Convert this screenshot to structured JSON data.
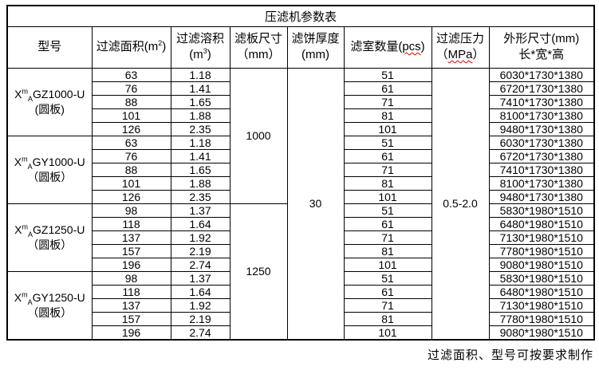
{
  "title": "压滤机参数表",
  "footer": "过滤面积、型号可按要求制作",
  "colors": {
    "border": "#000000",
    "text": "#000000",
    "spellcheck_underline": "#dd0000"
  },
  "headers": {
    "model": "型号",
    "area_prefix": "过滤面积(m",
    "area_sup": "2",
    "area_suffix": ")",
    "volume_line1": "过滤溶积",
    "volume_prefix": "(m",
    "volume_sup": "3",
    "volume_suffix": ")",
    "plate_line1": "滤板尺寸",
    "plate_line2": "（mm）",
    "cake_line1": "滤饼厚度",
    "cake_line2": "(mm)",
    "chambers_prefix": "滤室数量(",
    "chambers_unit": "pcs",
    "chambers_suffix": ")",
    "pressure_line1": "过滤压力",
    "pressure_open": "（",
    "pressure_unit": "MPa",
    "pressure_close": "）",
    "dims_line1": "外形尺寸(mm)",
    "dims_line2": "长*宽*高"
  },
  "plate_sizes": [
    {
      "value": "1000",
      "rows": 10
    },
    {
      "value": "1250",
      "rows": 10
    }
  ],
  "cake_thickness": "30",
  "pressure": "0.5-2.0",
  "groups": [
    {
      "model": {
        "prefix": "X",
        "sup": "m",
        "sub": "A",
        "name": "GZ1000-U",
        "variant": "(圆板)"
      },
      "rows": [
        {
          "area": "63",
          "volume": "1.18",
          "chambers": "51",
          "dims": "6030*1730*1380"
        },
        {
          "area": "76",
          "volume": "1.41",
          "chambers": "61",
          "dims": "6720*1730*1380"
        },
        {
          "area": "88",
          "volume": "1.65",
          "chambers": "71",
          "dims": "7410*1730*1380"
        },
        {
          "area": "101",
          "volume": "1.88",
          "chambers": "81",
          "dims": "8100*1730*1380"
        },
        {
          "area": "126",
          "volume": "2.35",
          "chambers": "101",
          "dims": "9480*1730*1380"
        }
      ]
    },
    {
      "model": {
        "prefix": "X",
        "sup": "m",
        "sub": "A",
        "name": "GY1000-U",
        "variant": "（圆板）"
      },
      "rows": [
        {
          "area": "63",
          "volume": "1.18",
          "chambers": "51",
          "dims": "6030*1730*1380"
        },
        {
          "area": "76",
          "volume": "1.41",
          "chambers": "61",
          "dims": "6720*1730*1380"
        },
        {
          "area": "88",
          "volume": "1.65",
          "chambers": "71",
          "dims": "7410*1730*1380"
        },
        {
          "area": "101",
          "volume": "1.88",
          "chambers": "81",
          "dims": "8100*1730*1380"
        },
        {
          "area": "126",
          "volume": "2.35",
          "chambers": "101",
          "dims": "9480*1730*1380"
        }
      ]
    },
    {
      "model": {
        "prefix": "X",
        "sup": "m",
        "sub": "A",
        "name": "GZ1250-U",
        "variant": "（圆板）"
      },
      "rows": [
        {
          "area": "98",
          "volume": "1.37",
          "chambers": "51",
          "dims": "5830*1980*1510"
        },
        {
          "area": "118",
          "volume": "1.64",
          "chambers": "61",
          "dims": "6480*1980*1510"
        },
        {
          "area": "137",
          "volume": "1.92",
          "chambers": "71",
          "dims": "7130*1980*1510"
        },
        {
          "area": "157",
          "volume": "2.19",
          "chambers": "81",
          "dims": "7780*1980*1510"
        },
        {
          "area": "196",
          "volume": "2.74",
          "chambers": "101",
          "dims": "9080*1980*1510"
        }
      ]
    },
    {
      "model": {
        "prefix": "X",
        "sup": "m",
        "sub": "A",
        "name": "GY1250-U",
        "variant": "（圆板）"
      },
      "rows": [
        {
          "area": "98",
          "volume": "1.37",
          "chambers": "51",
          "dims": "5830*1980*1510"
        },
        {
          "area": "118",
          "volume": "1.64",
          "chambers": "61",
          "dims": "6480*1980*1510"
        },
        {
          "area": "137",
          "volume": "1.92",
          "chambers": "71",
          "dims": "7130*1980*1510"
        },
        {
          "area": "157",
          "volume": "2.19",
          "chambers": "81",
          "dims": "7780*1980*1510"
        },
        {
          "area": "196",
          "volume": "2.74",
          "chambers": "101",
          "dims": "9080*1980*1510"
        }
      ]
    }
  ]
}
